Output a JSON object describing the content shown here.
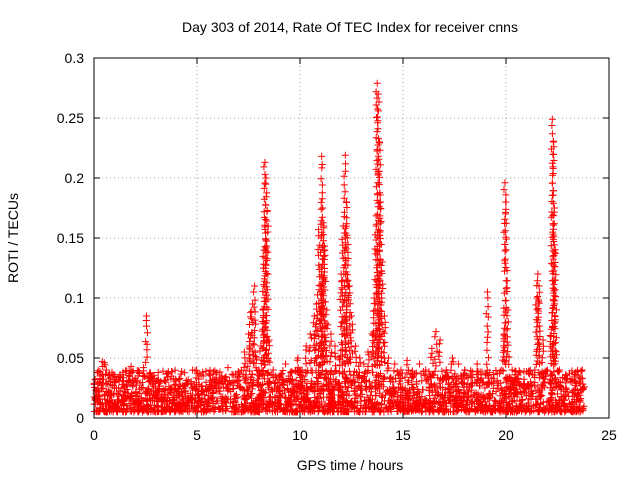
{
  "chart_data": {
    "type": "scatter",
    "title": "Day 303 of 2014, Rate Of TEC Index for receiver cnns",
    "xlabel": "GPS time / hours",
    "ylabel": "ROTI / TECUs",
    "xlim": [
      0,
      25
    ],
    "ylim": [
      0,
      0.3
    ],
    "xticks": [
      0,
      5,
      10,
      15,
      20,
      25
    ],
    "yticks": [
      0,
      0.05,
      0.1,
      0.15,
      0.2,
      0.25,
      0.3
    ],
    "xtick_labels": [
      "0",
      "5",
      "10",
      "15",
      "20",
      "25"
    ],
    "ytick_labels": [
      "0",
      "0.05",
      "0.1",
      "0.15",
      "0.2",
      "0.25",
      "0.3"
    ],
    "grid": true,
    "marker": "+",
    "color": "#ff0000",
    "series": [
      {
        "name": "ROTI",
        "x": [
          0.0,
          0.1,
          0.2,
          0.3,
          0.4,
          0.5,
          0.6,
          0.7,
          0.8,
          1.0,
          1.2,
          1.4,
          1.6,
          1.8,
          2.0,
          2.2,
          2.4,
          2.55,
          2.7,
          3.0,
          3.3,
          3.6,
          4.0,
          4.3,
          4.6,
          4.9,
          5.1,
          5.3,
          5.6,
          5.9,
          6.2,
          6.5,
          6.8,
          7.1,
          7.3,
          7.5,
          7.6,
          7.7,
          7.8,
          7.9,
          8.0,
          8.1,
          8.2,
          8.25,
          8.3,
          8.35,
          8.4,
          8.5,
          8.7,
          9.0,
          9.3,
          9.6,
          9.9,
          10.1,
          10.3,
          10.5,
          10.7,
          10.8,
          10.9,
          11.0,
          11.05,
          11.1,
          11.15,
          11.2,
          11.3,
          11.5,
          11.7,
          11.9,
          12.0,
          12.1,
          12.2,
          12.25,
          12.3,
          12.4,
          12.5,
          12.7,
          12.9,
          13.1,
          13.3,
          13.5,
          13.6,
          13.7,
          13.75,
          13.8,
          13.85,
          13.9,
          14.0,
          14.1,
          14.3,
          14.6,
          14.9,
          15.2,
          15.5,
          15.8,
          16.1,
          16.4,
          16.6,
          16.8,
          17.1,
          17.4,
          17.7,
          18.0,
          18.3,
          18.6,
          18.9,
          19.1,
          19.4,
          19.6,
          19.8,
          19.9,
          19.95,
          20.0,
          20.1,
          20.3,
          20.6,
          20.9,
          21.2,
          21.4,
          21.5,
          21.55,
          21.6,
          21.8,
          22.0,
          22.1,
          22.2,
          22.25,
          22.3,
          22.35,
          22.4,
          22.6,
          22.9,
          23.2,
          23.5,
          23.7
        ],
        "y": [
          0.028,
          0.02,
          0.018,
          0.035,
          0.047,
          0.046,
          0.04,
          0.022,
          0.02,
          0.032,
          0.025,
          0.036,
          0.028,
          0.043,
          0.033,
          0.024,
          0.042,
          0.085,
          0.02,
          0.018,
          0.022,
          0.02,
          0.017,
          0.018,
          0.014,
          0.016,
          0.028,
          0.035,
          0.025,
          0.03,
          0.035,
          0.042,
          0.03,
          0.025,
          0.055,
          0.07,
          0.088,
          0.095,
          0.11,
          0.05,
          0.04,
          0.06,
          0.09,
          0.14,
          0.213,
          0.2,
          0.172,
          0.065,
          0.04,
          0.035,
          0.045,
          0.03,
          0.05,
          0.04,
          0.06,
          0.07,
          0.085,
          0.095,
          0.157,
          0.11,
          0.218,
          0.175,
          0.16,
          0.14,
          0.09,
          0.07,
          0.06,
          0.05,
          0.12,
          0.16,
          0.219,
          0.18,
          0.15,
          0.11,
          0.085,
          0.06,
          0.05,
          0.045,
          0.055,
          0.07,
          0.1,
          0.16,
          0.279,
          0.27,
          0.23,
          0.18,
          0.13,
          0.085,
          0.05,
          0.045,
          0.04,
          0.048,
          0.035,
          0.045,
          0.04,
          0.058,
          0.072,
          0.065,
          0.04,
          0.05,
          0.045,
          0.04,
          0.035,
          0.045,
          0.03,
          0.105,
          0.03,
          0.025,
          0.04,
          0.07,
          0.196,
          0.18,
          0.09,
          0.04,
          0.03,
          0.025,
          0.02,
          0.04,
          0.1,
          0.12,
          0.11,
          0.065,
          0.04,
          0.03,
          0.074,
          0.249,
          0.23,
          0.175,
          0.137,
          0.04,
          0.025,
          0.03,
          0.035,
          0.04
        ]
      }
    ],
    "background_band": {
      "description": "dense cloud of points between 0.005 and 0.04 over the full day",
      "x_range": [
        0,
        23.8
      ],
      "y_range": [
        0.005,
        0.04
      ]
    }
  }
}
